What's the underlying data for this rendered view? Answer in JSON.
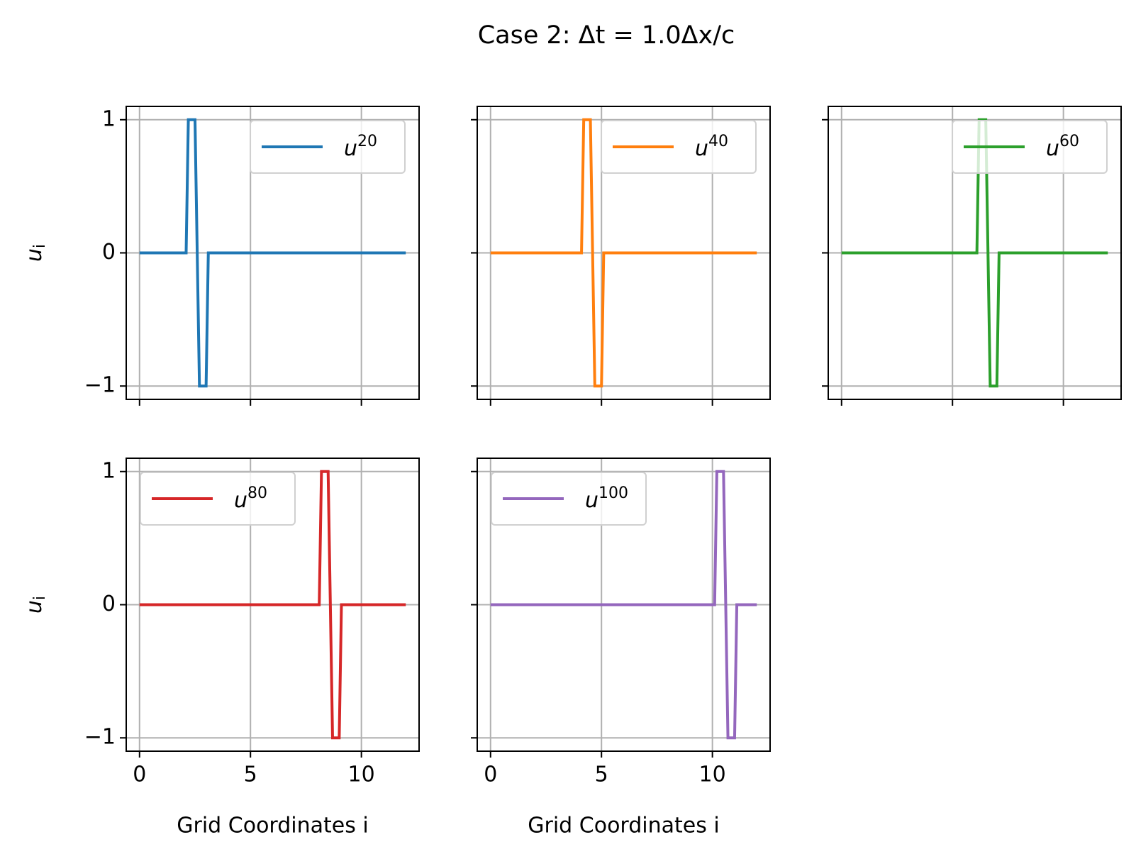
{
  "title": "Case 2: Δt = 1.0Δx/c",
  "chart_data": [
    {
      "type": "line",
      "series": [
        {
          "name": "u20",
          "color": "#1f77b4",
          "x": [
            0,
            2.1,
            2.2,
            2.5,
            2.7,
            3.0,
            3.1,
            12
          ],
          "values": [
            0,
            0,
            1,
            1,
            -1,
            -1,
            0,
            0
          ]
        }
      ],
      "xlim": [
        -0.6,
        12.6
      ],
      "ylim": [
        -1.1,
        1.1
      ],
      "xticks": [
        0,
        5,
        10
      ],
      "yticks": [
        {
          "value": -1,
          "label": "−1"
        },
        0,
        1
      ],
      "show_xticklabels": false,
      "show_yticklabels": true,
      "ylabel": "ui",
      "grid": true,
      "legend_loc": "upper right"
    },
    {
      "type": "line",
      "series": [
        {
          "name": "u40",
          "color": "#ff7f0e",
          "x": [
            0,
            4.1,
            4.2,
            4.5,
            4.7,
            5.0,
            5.1,
            12
          ],
          "values": [
            0,
            0,
            1,
            1,
            -1,
            -1,
            0,
            0
          ]
        }
      ],
      "xlim": [
        -0.6,
        12.6
      ],
      "ylim": [
        -1.1,
        1.1
      ],
      "xticks": [
        0,
        5,
        10
      ],
      "yticks": [
        -1,
        0,
        1
      ],
      "show_xticklabels": false,
      "show_yticklabels": false,
      "grid": true,
      "legend_loc": "upper right"
    },
    {
      "type": "line",
      "series": [
        {
          "name": "u60",
          "color": "#2ca02c",
          "x": [
            0,
            6.1,
            6.2,
            6.5,
            6.7,
            7.0,
            7.1,
            12
          ],
          "values": [
            0,
            0,
            1,
            1,
            -1,
            -1,
            0,
            0
          ]
        }
      ],
      "xlim": [
        -0.6,
        12.6
      ],
      "ylim": [
        -1.1,
        1.1
      ],
      "xticks": [
        0,
        5,
        10
      ],
      "yticks": [
        -1,
        0,
        1
      ],
      "show_xticklabels": false,
      "show_yticklabels": false,
      "grid": true,
      "legend_loc": "upper right"
    },
    {
      "type": "line",
      "series": [
        {
          "name": "u80",
          "color": "#d62728",
          "x": [
            0,
            8.1,
            8.2,
            8.5,
            8.7,
            9.0,
            9.1,
            12
          ],
          "values": [
            0,
            0,
            1,
            1,
            -1,
            -1,
            0,
            0
          ]
        }
      ],
      "xlim": [
        -0.6,
        12.6
      ],
      "ylim": [
        -1.1,
        1.1
      ],
      "xticks": [
        0,
        5,
        10
      ],
      "yticks": [
        {
          "value": -1,
          "label": "−1"
        },
        0,
        1
      ],
      "show_xticklabels": true,
      "show_yticklabels": true,
      "xlabel": "Grid Coordinates i",
      "ylabel": "ui",
      "grid": true,
      "legend_loc": "upper left"
    },
    {
      "type": "line",
      "series": [
        {
          "name": "u100",
          "color": "#9467bd",
          "x": [
            0,
            10.1,
            10.2,
            10.5,
            10.7,
            11.0,
            11.1,
            12
          ],
          "values": [
            0,
            0,
            1,
            1,
            -1,
            -1,
            0,
            0
          ]
        }
      ],
      "xlim": [
        -0.6,
        12.6
      ],
      "ylim": [
        -1.1,
        1.1
      ],
      "xticks": [
        0,
        5,
        10
      ],
      "yticks": [
        -1,
        0,
        1
      ],
      "show_xticklabels": true,
      "show_yticklabels": false,
      "xlabel": "Grid Coordinates i",
      "grid": true,
      "legend_loc": "upper left"
    }
  ]
}
